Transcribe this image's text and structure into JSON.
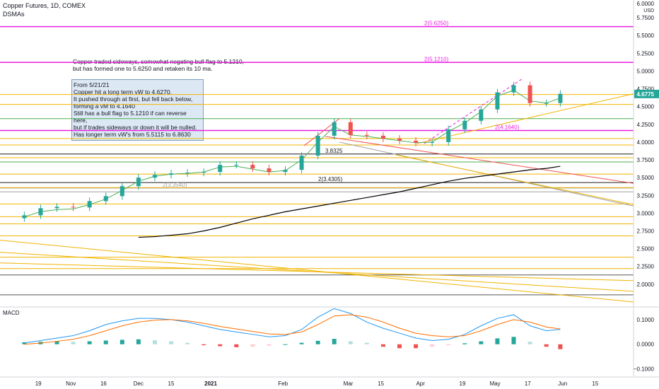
{
  "header": {
    "title": "Copper Futures, 1D, COMEX",
    "indicator": "DSMAs"
  },
  "notes": {
    "top": "Copper traded sideways, somewhat negating bull flag to 5.1210,\nbut has formed one to 5.6250 and retaken its 10 ma.",
    "box": "From 5/21/21\nCopper hit a long term vW to 4.6270.\nIt pushed through at first, but fell back below,\nforming a vM to 4.1640\nStill has a bull flag to 5.1210 if can reverse here,\nbut if trades sideways or down it will be nulled.\nHas longer term vW's from 5.5115 to 6.8630"
  },
  "chart_data": [
    {
      "type": "line",
      "name": "price-panel",
      "title": "Copper Futures, 1D, COMEX",
      "y_axis": {
        "ylim": [
          1.7,
          6.0
        ],
        "ticks": [
          "2.0000",
          "2.2500",
          "2.5000",
          "2.7500",
          "3.0000",
          "3.2500",
          "3.5000",
          "3.7500",
          "4.0000",
          "4.2500",
          "4.5000",
          "4.7500",
          "5.0000",
          "5.2500",
          "5.5000",
          "5.7500"
        ],
        "top_label": "6.0000",
        "unit": "USD"
      },
      "last_price": {
        "label": "4.6775",
        "value": 4.6775,
        "color": "#26a69a"
      },
      "candles": {
        "dates": [
          "2020-10-13",
          "2020-10-20",
          "2020-10-27",
          "2020-11-03",
          "2020-11-10",
          "2020-11-17",
          "2020-11-24",
          "2020-12-01",
          "2020-12-08",
          "2020-12-15",
          "2020-12-22",
          "2020-12-29",
          "2021-01-05",
          "2021-01-12",
          "2021-01-19",
          "2021-01-26",
          "2021-02-02",
          "2021-02-09",
          "2021-02-16",
          "2021-02-23",
          "2021-03-02",
          "2021-03-09",
          "2021-03-16",
          "2021-03-23",
          "2021-03-30",
          "2021-04-06",
          "2021-04-13",
          "2021-04-20",
          "2021-04-27",
          "2021-05-04",
          "2021-05-11",
          "2021-05-18",
          "2021-05-25",
          "2021-05-31"
        ],
        "close": [
          2.97,
          3.07,
          3.09,
          3.08,
          3.17,
          3.24,
          3.38,
          3.5,
          3.54,
          3.56,
          3.57,
          3.58,
          3.68,
          3.68,
          3.63,
          3.58,
          3.61,
          3.81,
          4.09,
          4.28,
          4.1,
          4.09,
          4.05,
          4.02,
          3.99,
          4.0,
          4.18,
          4.3,
          4.46,
          4.7,
          4.8,
          4.55,
          4.55,
          4.68
        ]
      },
      "ma_green": [
        2.95,
        3.02,
        3.05,
        3.06,
        3.12,
        3.2,
        3.32,
        3.45,
        3.52,
        3.55,
        3.56,
        3.58,
        3.65,
        3.66,
        3.62,
        3.58,
        3.6,
        3.75,
        4.0,
        4.22,
        4.1,
        4.08,
        4.05,
        4.02,
        3.99,
        4.0,
        4.15,
        4.27,
        4.43,
        4.65,
        4.73,
        4.58,
        4.55,
        4.62
      ],
      "ma_black": [
        2.66,
        2.67,
        2.69,
        2.71,
        2.75,
        2.8,
        2.86,
        2.92,
        2.97,
        3.02,
        3.06,
        3.1,
        3.14,
        3.18,
        3.22,
        3.26,
        3.3,
        3.35,
        3.4,
        3.45,
        3.49,
        3.52,
        3.55,
        3.58,
        3.61,
        3.63,
        3.66
      ],
      "levels": [
        {
          "y": 5.625,
          "color": "#e91ee0",
          "label": "2(5.6250)"
        },
        {
          "y": 5.121,
          "color": "#e91ee0",
          "label": "2(5.1210)"
        },
        {
          "y": 4.164,
          "color": "#e91ee0",
          "label": "2(4.1640)"
        },
        {
          "y": 3.4305,
          "color": "#1c1c1c",
          "label": "2(3.4305)"
        },
        {
          "y": 3.354,
          "color": "#9e9e9e",
          "label": "2(3.3540)"
        },
        {
          "y": 3.8325,
          "color": "#1c1c1c",
          "label": "3.8325"
        },
        {
          "y": 4.67,
          "color": "#f0b400",
          "label": ""
        },
        {
          "y": 4.53,
          "color": "#f0b400",
          "label": ""
        },
        {
          "y": 4.33,
          "color": "#4caf50",
          "label": ""
        },
        {
          "y": 4.05,
          "color": "#f0b400",
          "label": ""
        },
        {
          "y": 3.96,
          "color": "#f0b400",
          "label": ""
        },
        {
          "y": 3.78,
          "color": "#f0b400",
          "label": ""
        },
        {
          "y": 3.72,
          "color": "#4caf50",
          "label": ""
        },
        {
          "y": 3.55,
          "color": "#f0b400",
          "label": ""
        },
        {
          "y": 3.36,
          "color": "#f0b400",
          "label": ""
        },
        {
          "y": 3.3,
          "color": "#9e9e9e",
          "label": ""
        },
        {
          "y": 3.13,
          "color": "#f0b400",
          "label": ""
        },
        {
          "y": 2.95,
          "color": "#f0b400",
          "label": ""
        },
        {
          "y": 2.85,
          "color": "#f0b400",
          "label": ""
        },
        {
          "y": 2.68,
          "color": "#f0b400",
          "label": ""
        },
        {
          "y": 2.38,
          "color": "#f0b400",
          "label": ""
        },
        {
          "y": 2.22,
          "color": "#f0b400",
          "label": ""
        },
        {
          "y": 2.13,
          "color": "#555555",
          "label": ""
        },
        {
          "y": 1.85,
          "color": "#555555",
          "label": ""
        }
      ]
    },
    {
      "type": "bar",
      "name": "MACD",
      "title": "MACD",
      "y_axis": {
        "ylim": [
          -0.13,
          0.14
        ],
        "ticks": [
          "0.1000",
          "0.0000",
          "−0.1000"
        ]
      },
      "histogram": [
        0.008,
        0.01,
        0.012,
        0.01,
        0.012,
        0.015,
        0.018,
        0.02,
        0.016,
        0.012,
        0.006,
        -0.004,
        -0.008,
        -0.012,
        -0.01,
        -0.006,
        0.0,
        0.006,
        0.014,
        0.022,
        0.012,
        0.006,
        -0.01,
        -0.016,
        -0.016,
        -0.01,
        -0.004,
        0.004,
        0.012,
        0.024,
        0.03,
        0.01,
        -0.01,
        -0.02
      ],
      "macd": [
        0.005,
        0.015,
        0.025,
        0.035,
        0.055,
        0.08,
        0.095,
        0.105,
        0.105,
        0.1,
        0.09,
        0.075,
        0.06,
        0.05,
        0.04,
        0.03,
        0.035,
        0.06,
        0.11,
        0.145,
        0.125,
        0.09,
        0.065,
        0.045,
        0.025,
        0.015,
        0.02,
        0.04,
        0.075,
        0.105,
        0.12,
        0.075,
        0.055,
        0.06
      ],
      "signal": [
        0.0,
        0.005,
        0.012,
        0.02,
        0.035,
        0.055,
        0.075,
        0.09,
        0.098,
        0.1,
        0.095,
        0.085,
        0.072,
        0.062,
        0.052,
        0.042,
        0.04,
        0.05,
        0.08,
        0.115,
        0.12,
        0.11,
        0.09,
        0.065,
        0.045,
        0.035,
        0.03,
        0.035,
        0.055,
        0.08,
        0.1,
        0.09,
        0.07,
        0.062
      ]
    }
  ],
  "x_axis": {
    "ticks": [
      "19",
      "Nov",
      "16",
      "Dec",
      "15",
      "2021",
      "Feb",
      "Mar",
      "15",
      "Apr",
      "19",
      "May",
      "17",
      "Jun",
      "15"
    ],
    "tick_dates": [
      "2020-10-19",
      "2020-11-02",
      "2020-11-16",
      "2020-12-01",
      "2020-12-15",
      "2021-01-01",
      "2021-02-01",
      "2021-03-01",
      "2021-03-15",
      "2021-04-01",
      "2021-04-19",
      "2021-05-03",
      "2021-05-17",
      "2021-06-01",
      "2021-06-15"
    ]
  },
  "colors": {
    "up": "#26a69a",
    "down": "#ef5350",
    "macd": "#2196f3",
    "signal": "#ff6d00",
    "ma_green": "#4caf50",
    "ma_black": "#000000",
    "hist_up": "#26a69a",
    "hist_up_light": "#b2dfdb",
    "hist_down": "#ef5350",
    "hist_down_light": "#ffcdd2",
    "macd_pink": "#ea80fc"
  }
}
